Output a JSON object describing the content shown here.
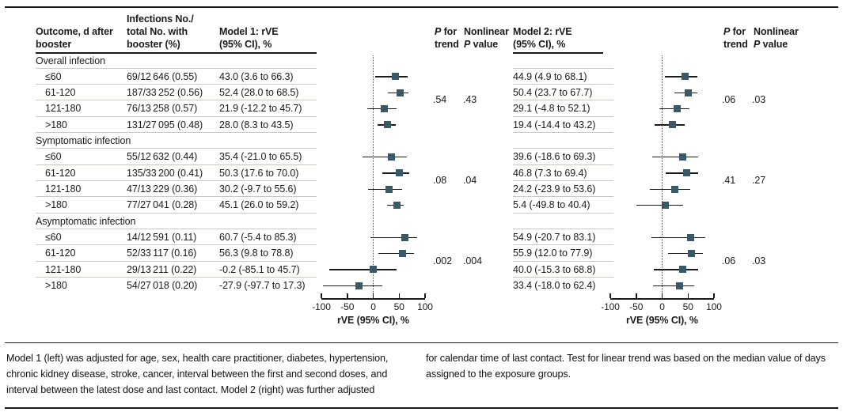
{
  "colors": {
    "marker": "#3a5968",
    "rule_dark": "#1a1a1a",
    "rule_light": "#ccc9c4"
  },
  "headers": {
    "outcome": [
      "Outcome, d after",
      "booster"
    ],
    "infections": [
      "Infections No./",
      "total No. with",
      "booster (%)"
    ],
    "model1": [
      "Model 1: rVE",
      "(95% CI), %"
    ],
    "model2": [
      "Model 2: rVE",
      "(95% CI), %"
    ],
    "p_trend": {
      "l1i": "P",
      "l1r": " for",
      "l2": "trend"
    },
    "nonlinear": {
      "l1": "Nonlinear",
      "l2i": "P",
      "l2r": " value"
    }
  },
  "axis": {
    "min": -100,
    "max": 100,
    "ticks": [
      -100,
      -50,
      0,
      50,
      100
    ],
    "tick_labels": [
      "-100",
      "-50",
      "0",
      "50",
      "100"
    ],
    "label": "rVE (95% CI), %"
  },
  "groups": [
    {
      "section": "Overall infection",
      "m1_p_trend": ".54",
      "m1_p_nonlinear": ".43",
      "m2_p_trend": ".06",
      "m2_p_nonlinear": ".03",
      "rows": [
        {
          "label": "≤60",
          "infections": "69/12 646 (0.55)",
          "m1": "43.0 (3.6 to 66.3)",
          "m1_est": 43.0,
          "m1_lo": 3.6,
          "m1_hi": 66.3,
          "m2": "44.9 (4.9 to 68.1)",
          "m2_est": 44.9,
          "m2_lo": 4.9,
          "m2_hi": 68.1
        },
        {
          "label": "61-120",
          "infections": "187/33 252 (0.56)",
          "m1": "52.4 (28.0 to 68.5)",
          "m1_est": 52.4,
          "m1_lo": 28.0,
          "m1_hi": 68.5,
          "m2": "50.4 (23.7 to 67.7)",
          "m2_est": 50.4,
          "m2_lo": 23.7,
          "m2_hi": 67.7
        },
        {
          "label": "121-180",
          "infections": "76/13 258 (0.57)",
          "m1": "21.9 (-12.2 to 45.7)",
          "m1_est": 21.9,
          "m1_lo": -12.2,
          "m1_hi": 45.7,
          "m2": "29.1 (-4.8 to 52.1)",
          "m2_est": 29.1,
          "m2_lo": -4.8,
          "m2_hi": 52.1
        },
        {
          "label": ">180",
          "infections": "131/27 095 (0.48)",
          "m1": "28.0 (8.3 to 43.5)",
          "m1_est": 28.0,
          "m1_lo": 8.3,
          "m1_hi": 43.5,
          "m2": "19.4 (-14.4 to 43.2)",
          "m2_est": 19.4,
          "m2_lo": -14.4,
          "m2_hi": 43.2
        }
      ]
    },
    {
      "section": "Symptomatic infection",
      "m1_p_trend": ".08",
      "m1_p_nonlinear": ".04",
      "m2_p_trend": ".41",
      "m2_p_nonlinear": ".27",
      "rows": [
        {
          "label": "≤60",
          "infections": "55/12 632 (0.44)",
          "m1": "35.4 (-21.0 to 65.5)",
          "m1_est": 35.4,
          "m1_lo": -21.0,
          "m1_hi": 65.5,
          "m2": "39.6 (-18.6 to 69.3)",
          "m2_est": 39.6,
          "m2_lo": -18.6,
          "m2_hi": 69.3
        },
        {
          "label": "61-120",
          "infections": "135/33 200 (0.41)",
          "m1": "50.3 (17.6 to 70.0)",
          "m1_est": 50.3,
          "m1_lo": 17.6,
          "m1_hi": 70.0,
          "m2": "46.8 (7.3 to 69.4)",
          "m2_est": 46.8,
          "m2_lo": 7.3,
          "m2_hi": 69.4
        },
        {
          "label": "121-180",
          "infections": "47/13 229 (0.36)",
          "m1": "30.2 (-9.7 to 55.6)",
          "m1_est": 30.2,
          "m1_lo": -9.7,
          "m1_hi": 55.6,
          "m2": "24.2 (-23.9 to 53.6)",
          "m2_est": 24.2,
          "m2_lo": -23.9,
          "m2_hi": 53.6
        },
        {
          "label": ">180",
          "infections": "77/27 041 (0.28)",
          "m1": "45.1 (26.0 to 59.2)",
          "m1_est": 45.1,
          "m1_lo": 26.0,
          "m1_hi": 59.2,
          "m2": "5.4 (-49.8 to 40.4)",
          "m2_est": 5.4,
          "m2_lo": -49.8,
          "m2_hi": 40.4
        }
      ]
    },
    {
      "section": "Asymptomatic infection",
      "m1_p_trend": ".002",
      "m1_p_nonlinear": ".004",
      "m2_p_trend": ".06",
      "m2_p_nonlinear": ".03",
      "rows": [
        {
          "label": "≤60",
          "infections": "14/12 591 (0.11)",
          "m1": "60.7 (-5.4 to 85.3)",
          "m1_est": 60.7,
          "m1_lo": -5.4,
          "m1_hi": 85.3,
          "m2": "54.9 (-20.7 to 83.1)",
          "m2_est": 54.9,
          "m2_lo": -20.7,
          "m2_hi": 83.1
        },
        {
          "label": "61-120",
          "infections": "52/33 117 (0.16)",
          "m1": "56.3 (9.8 to 78.8)",
          "m1_est": 56.3,
          "m1_lo": 9.8,
          "m1_hi": 78.8,
          "m2": "55.9 (12.0 to 77.9)",
          "m2_est": 55.9,
          "m2_lo": 12.0,
          "m2_hi": 77.9
        },
        {
          "label": "121-180",
          "infections": "29/13 211 (0.22)",
          "m1": "-0.2 (-85.1 to 45.7)",
          "m1_est": -0.2,
          "m1_lo": -85.1,
          "m1_hi": 45.7,
          "m2": "40.0 (-15.3 to 68.8)",
          "m2_est": 40.0,
          "m2_lo": -15.3,
          "m2_hi": 68.8
        },
        {
          "label": ">180",
          "infections": "54/27 018 (0.20)",
          "m1": "-27.9 (-97.7 to 17.3)",
          "m1_est": -27.9,
          "m1_lo": -97.7,
          "m1_hi": 17.3,
          "m2": "33.4 (-18.0 to 62.4)",
          "m2_est": 33.4,
          "m2_lo": -18.0,
          "m2_hi": 62.4
        }
      ]
    }
  ],
  "footnotes": {
    "left": "Model 1 (left) was adjusted for age, sex, health care practitioner, diabetes, hypertension, chronic kidney disease, stroke, cancer, interval between the first and second doses, and interval between the latest dose and last contact. Model 2 (right) was further adjusted",
    "right": "for calendar time of last contact. Test for linear trend was based on the median value of days assigned to the exposure groups."
  },
  "chart_data": {
    "type": "scatter",
    "subtype": "forest-plot",
    "title": "",
    "xlabel": "rVE (95% CI), %",
    "xlim": [
      -100,
      100
    ],
    "x_ticks": [
      -100,
      -50,
      0,
      50,
      100
    ],
    "reference_line": 0,
    "categories": [
      "Overall infection ≤60",
      "Overall infection 61-120",
      "Overall infection 121-180",
      "Overall infection >180",
      "Symptomatic infection ≤60",
      "Symptomatic infection 61-120",
      "Symptomatic infection 121-180",
      "Symptomatic infection >180",
      "Asymptomatic infection ≤60",
      "Asymptomatic infection 61-120",
      "Asymptomatic infection 121-180",
      "Asymptomatic infection >180"
    ],
    "series": [
      {
        "name": "Model 1: rVE (95% CI), %",
        "points": [
          {
            "est": 43.0,
            "lo": 3.6,
            "hi": 66.3
          },
          {
            "est": 52.4,
            "lo": 28.0,
            "hi": 68.5
          },
          {
            "est": 21.9,
            "lo": -12.2,
            "hi": 45.7
          },
          {
            "est": 28.0,
            "lo": 8.3,
            "hi": 43.5
          },
          {
            "est": 35.4,
            "lo": -21.0,
            "hi": 65.5
          },
          {
            "est": 50.3,
            "lo": 17.6,
            "hi": 70.0
          },
          {
            "est": 30.2,
            "lo": -9.7,
            "hi": 55.6
          },
          {
            "est": 45.1,
            "lo": 26.0,
            "hi": 59.2
          },
          {
            "est": 60.7,
            "lo": -5.4,
            "hi": 85.3
          },
          {
            "est": 56.3,
            "lo": 9.8,
            "hi": 78.8
          },
          {
            "est": -0.2,
            "lo": -85.1,
            "hi": 45.7
          },
          {
            "est": -27.9,
            "lo": -97.7,
            "hi": 17.3
          }
        ],
        "p_for_trend": [
          ".54",
          ".08",
          ".002"
        ],
        "nonlinear_p": [
          ".43",
          ".04",
          ".004"
        ]
      },
      {
        "name": "Model 2: rVE (95% CI), %",
        "points": [
          {
            "est": 44.9,
            "lo": 4.9,
            "hi": 68.1
          },
          {
            "est": 50.4,
            "lo": 23.7,
            "hi": 67.7
          },
          {
            "est": 29.1,
            "lo": -4.8,
            "hi": 52.1
          },
          {
            "est": 19.4,
            "lo": -14.4,
            "hi": 43.2
          },
          {
            "est": 39.6,
            "lo": -18.6,
            "hi": 69.3
          },
          {
            "est": 46.8,
            "lo": 7.3,
            "hi": 69.4
          },
          {
            "est": 24.2,
            "lo": -23.9,
            "hi": 53.6
          },
          {
            "est": 5.4,
            "lo": -49.8,
            "hi": 40.4
          },
          {
            "est": 54.9,
            "lo": -20.7,
            "hi": 83.1
          },
          {
            "est": 55.9,
            "lo": 12.0,
            "hi": 77.9
          },
          {
            "est": 40.0,
            "lo": -15.3,
            "hi": 68.8
          },
          {
            "est": 33.4,
            "lo": -18.0,
            "hi": 62.4
          }
        ],
        "p_for_trend": [
          ".06",
          ".41",
          ".06"
        ],
        "nonlinear_p": [
          ".03",
          ".27",
          ".03"
        ]
      }
    ]
  }
}
